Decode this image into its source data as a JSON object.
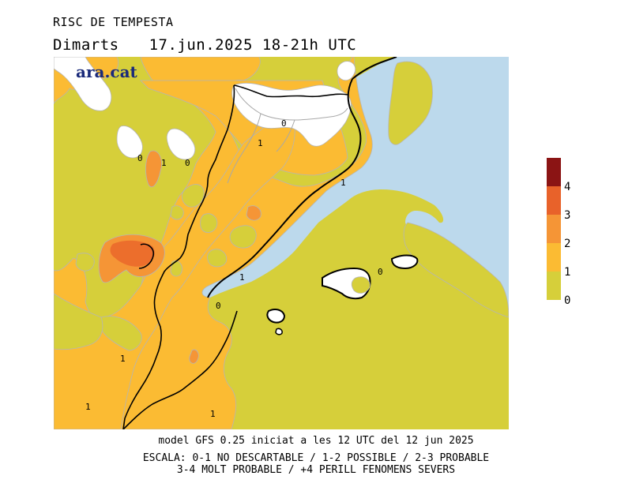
{
  "header": {
    "title": "RISC DE TEMPESTA",
    "day": "Dimarts",
    "datetime": "17.jun.2025 18-21h UTC"
  },
  "logo": "ara.cat",
  "map": {
    "contour_labels": [
      "0",
      "1",
      "0",
      "0",
      "1",
      "1",
      "1",
      "0",
      "0",
      "1",
      "1",
      "1"
    ]
  },
  "legend": {
    "levels": [
      "0",
      "1",
      "2",
      "3",
      "4"
    ],
    "colors": {
      "level_0_1": "#d6cf3a",
      "level_1_2": "#fbbb33",
      "level_2_3": "#f59536",
      "level_3_4": "#e8622a",
      "level_4_plus": "#8b1414",
      "sea": "#bcd9ec"
    }
  },
  "footer": {
    "model": "model GFS 0.25 iniciat a les 12 UTC del 12 jun 2025",
    "scale_line1": "ESCALA: 0-1 NO DESCARTABLE / 1-2 POSSIBLE / 2-3 PROBABLE",
    "scale_line2": "3-4 MOLT PROBABLE / +4 PERILL FENOMENS SEVERS"
  }
}
